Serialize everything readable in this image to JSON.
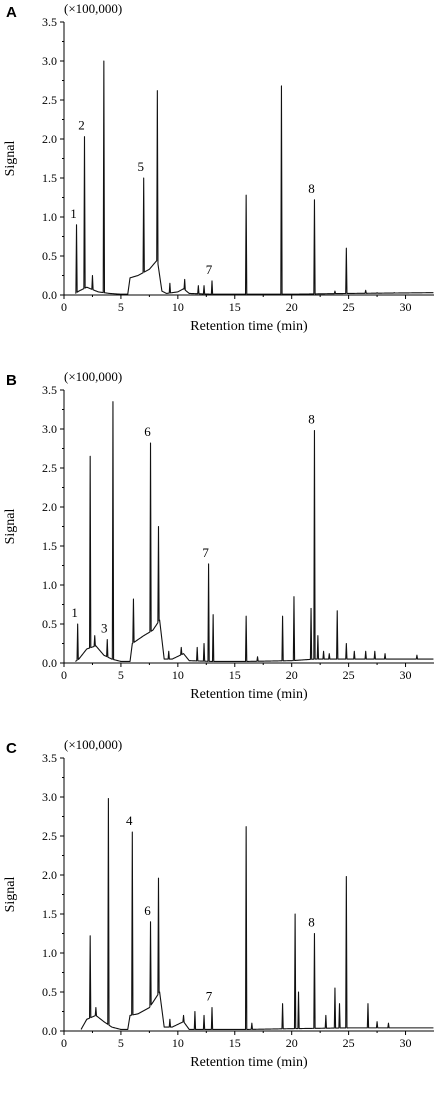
{
  "chart_data": [
    {
      "type": "line",
      "panel_label": "A",
      "scale_note": "(×100,000)",
      "xlabel": "Retention time (min)",
      "ylabel": "Signal",
      "xlim": [
        0,
        32.5
      ],
      "ylim": [
        0,
        3.5
      ],
      "x_ticks": [
        0,
        5,
        10,
        15,
        20,
        25,
        30
      ],
      "y_ticks": [
        0.0,
        0.5,
        1.0,
        1.5,
        2.0,
        2.5,
        3.0,
        3.5
      ],
      "baseline": [
        [
          1.0,
          0.02
        ],
        [
          1.3,
          0.05
        ],
        [
          2.0,
          0.1
        ],
        [
          2.5,
          0.07
        ],
        [
          3.0,
          0.04
        ],
        [
          4.0,
          0.02
        ],
        [
          5.0,
          0.01
        ],
        [
          5.6,
          0.01
        ],
        [
          5.8,
          0.22
        ],
        [
          6.5,
          0.25
        ],
        [
          7.5,
          0.33
        ],
        [
          8.2,
          0.45
        ],
        [
          8.6,
          0.05
        ],
        [
          9.0,
          0.02
        ],
        [
          10.0,
          0.04
        ],
        [
          10.5,
          0.08
        ],
        [
          11.0,
          0.02
        ],
        [
          13.0,
          0.01
        ],
        [
          16.0,
          0.01
        ],
        [
          20.0,
          0.01
        ],
        [
          25.0,
          0.02
        ],
        [
          32.5,
          0.03
        ]
      ],
      "peaks": [
        [
          1.1,
          0.9
        ],
        [
          1.8,
          2.03
        ],
        [
          2.5,
          0.25
        ],
        [
          3.5,
          3.0
        ],
        [
          7.0,
          1.5
        ],
        [
          8.2,
          2.62
        ],
        [
          9.3,
          0.15
        ],
        [
          10.6,
          0.2
        ],
        [
          11.8,
          0.12
        ],
        [
          12.3,
          0.12
        ],
        [
          13.0,
          0.18
        ],
        [
          16.0,
          1.28
        ],
        [
          19.1,
          2.68
        ],
        [
          22.0,
          1.22
        ],
        [
          23.8,
          0.05
        ],
        [
          24.8,
          0.6
        ],
        [
          26.5,
          0.06
        ],
        [
          27.5,
          0.03
        ],
        [
          29.0,
          0.03
        ]
      ],
      "annotations": [
        {
          "label": "1",
          "x": 1.1,
          "y": 0.9
        },
        {
          "label": "2",
          "x": 1.8,
          "y": 2.03
        },
        {
          "label": "5",
          "x": 7.0,
          "y": 1.5
        },
        {
          "label": "7",
          "x": 13.0,
          "y": 0.18
        },
        {
          "label": "8",
          "x": 22.0,
          "y": 1.22
        }
      ]
    },
    {
      "type": "line",
      "panel_label": "B",
      "scale_note": "(×100,000)",
      "xlabel": "Retention time (min)",
      "ylabel": "Signal",
      "xlim": [
        0,
        32.5
      ],
      "ylim": [
        0,
        3.5
      ],
      "x_ticks": [
        0,
        5,
        10,
        15,
        20,
        25,
        30
      ],
      "y_ticks": [
        0.0,
        0.5,
        1.0,
        1.5,
        2.0,
        2.5,
        3.0,
        3.5
      ],
      "baseline": [
        [
          1.0,
          0.02
        ],
        [
          1.3,
          0.05
        ],
        [
          2.0,
          0.18
        ],
        [
          2.8,
          0.22
        ],
        [
          3.5,
          0.1
        ],
        [
          4.2,
          0.05
        ],
        [
          5.0,
          0.02
        ],
        [
          5.8,
          0.02
        ],
        [
          6.0,
          0.25
        ],
        [
          7.0,
          0.35
        ],
        [
          7.8,
          0.42
        ],
        [
          8.4,
          0.55
        ],
        [
          8.8,
          0.05
        ],
        [
          9.5,
          0.05
        ],
        [
          10.5,
          0.12
        ],
        [
          11.0,
          0.03
        ],
        [
          13.0,
          0.02
        ],
        [
          16.0,
          0.02
        ],
        [
          20.0,
          0.03
        ],
        [
          22.0,
          0.05
        ],
        [
          25.0,
          0.05
        ],
        [
          32.5,
          0.05
        ]
      ],
      "peaks": [
        [
          1.2,
          0.5
        ],
        [
          2.3,
          2.65
        ],
        [
          2.7,
          0.35
        ],
        [
          3.8,
          0.3
        ],
        [
          4.3,
          3.35
        ],
        [
          6.1,
          0.82
        ],
        [
          7.6,
          2.82
        ],
        [
          8.3,
          1.75
        ],
        [
          9.2,
          0.15
        ],
        [
          10.3,
          0.2
        ],
        [
          11.7,
          0.2
        ],
        [
          12.3,
          0.25
        ],
        [
          12.7,
          1.27
        ],
        [
          13.1,
          0.62
        ],
        [
          16.0,
          0.6
        ],
        [
          17.0,
          0.08
        ],
        [
          19.2,
          0.6
        ],
        [
          20.2,
          0.85
        ],
        [
          21.7,
          0.7
        ],
        [
          22.0,
          2.98
        ],
        [
          22.3,
          0.35
        ],
        [
          22.8,
          0.15
        ],
        [
          23.3,
          0.12
        ],
        [
          24.0,
          0.67
        ],
        [
          24.8,
          0.25
        ],
        [
          25.5,
          0.15
        ],
        [
          26.5,
          0.15
        ],
        [
          27.3,
          0.15
        ],
        [
          28.2,
          0.12
        ],
        [
          31.0,
          0.1
        ]
      ],
      "annotations": [
        {
          "label": "1",
          "x": 1.2,
          "y": 0.5
        },
        {
          "label": "3",
          "x": 3.8,
          "y": 0.3
        },
        {
          "label": "6",
          "x": 7.6,
          "y": 2.82
        },
        {
          "label": "7",
          "x": 12.7,
          "y": 1.27
        },
        {
          "label": "8",
          "x": 22.0,
          "y": 2.98
        }
      ]
    },
    {
      "type": "line",
      "panel_label": "C",
      "scale_note": "(×100,000)",
      "xlabel": "Retention time (min)",
      "ylabel": "Signal",
      "xlim": [
        0,
        32.5
      ],
      "ylim": [
        0,
        3.5
      ],
      "x_ticks": [
        0,
        5,
        10,
        15,
        20,
        25,
        30
      ],
      "y_ticks": [
        0.0,
        0.5,
        1.0,
        1.5,
        2.0,
        2.5,
        3.0,
        3.5
      ],
      "baseline": [
        [
          1.5,
          0.02
        ],
        [
          2.0,
          0.15
        ],
        [
          2.8,
          0.2
        ],
        [
          3.5,
          0.12
        ],
        [
          4.2,
          0.05
        ],
        [
          5.0,
          0.02
        ],
        [
          5.6,
          0.02
        ],
        [
          5.8,
          0.2
        ],
        [
          6.5,
          0.22
        ],
        [
          7.5,
          0.3
        ],
        [
          8.4,
          0.5
        ],
        [
          8.8,
          0.05
        ],
        [
          9.5,
          0.05
        ],
        [
          10.5,
          0.12
        ],
        [
          11.0,
          0.02
        ],
        [
          13.0,
          0.02
        ],
        [
          16.0,
          0.02
        ],
        [
          20.0,
          0.03
        ],
        [
          25.0,
          0.04
        ],
        [
          32.5,
          0.04
        ]
      ],
      "peaks": [
        [
          2.3,
          1.22
        ],
        [
          2.8,
          0.3
        ],
        [
          3.9,
          2.98
        ],
        [
          6.0,
          2.55
        ],
        [
          7.6,
          1.4
        ],
        [
          8.3,
          1.96
        ],
        [
          9.3,
          0.15
        ],
        [
          10.5,
          0.2
        ],
        [
          11.5,
          0.25
        ],
        [
          12.3,
          0.2
        ],
        [
          13.0,
          0.3
        ],
        [
          16.0,
          2.62
        ],
        [
          16.5,
          0.1
        ],
        [
          19.2,
          0.35
        ],
        [
          20.3,
          1.5
        ],
        [
          20.6,
          0.5
        ],
        [
          22.0,
          1.25
        ],
        [
          23.0,
          0.2
        ],
        [
          23.8,
          0.55
        ],
        [
          24.2,
          0.35
        ],
        [
          24.8,
          1.98
        ],
        [
          26.7,
          0.35
        ],
        [
          27.5,
          0.12
        ],
        [
          28.5,
          0.1
        ]
      ],
      "annotations": [
        {
          "label": "4",
          "x": 6.0,
          "y": 2.55
        },
        {
          "label": "6",
          "x": 7.6,
          "y": 1.4
        },
        {
          "label": "7",
          "x": 13.0,
          "y": 0.3
        },
        {
          "label": "8",
          "x": 22.0,
          "y": 1.25
        }
      ]
    }
  ]
}
